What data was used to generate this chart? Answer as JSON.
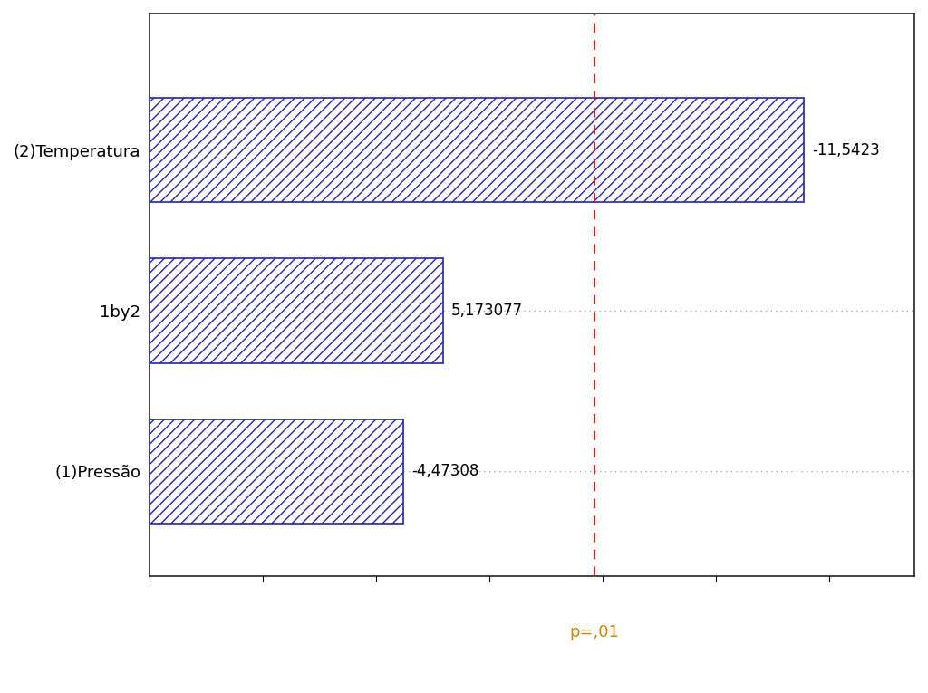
{
  "categories": [
    "(1)Pressão",
    "1by2",
    "(2)Temperatura"
  ],
  "values": [
    4.47308,
    5.173077,
    11.5423
  ],
  "bar_labels": [
    "-4,47308",
    "5,173077",
    "-11,5423"
  ],
  "bar_color_face": "none",
  "bar_edge_color": "#2222bb",
  "hatch": "///",
  "p_line_value": 7.85,
  "p_line_label": "p=,01",
  "p_line_color": "#cc2222",
  "p_label_color": "#cc8800",
  "background_color": "#ffffff",
  "plot_bg_color": "#ffffff",
  "grid_color": "#aaaaaa",
  "xlim": [
    0,
    13.5
  ],
  "fig_width": 10.24,
  "fig_height": 7.65,
  "dpi": 100,
  "bar_height": 0.65,
  "ytick_fontsize": 13,
  "label_fontsize": 12,
  "p_label_fontsize": 13
}
